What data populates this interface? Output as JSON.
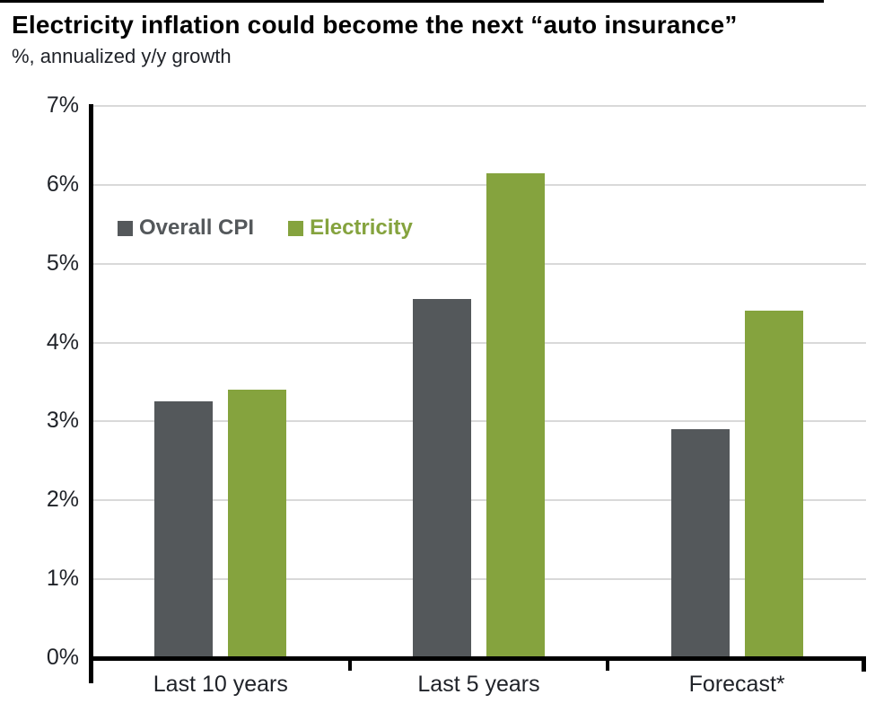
{
  "page": {
    "title": "Electricity inflation could become the next “auto insurance”",
    "subtitle": "%, annualized y/y growth"
  },
  "colors": {
    "overall_cpi": "#54585b",
    "electricity": "#85a33e",
    "gridline": "#d9d9d9",
    "axis": "#000000",
    "label_text": "#1f2228"
  },
  "chart_data": {
    "type": "bar",
    "title": "Electricity inflation could become the next “auto insurance”",
    "subtitle": "%, annualized y/y growth",
    "categories": [
      "Last 10 years",
      "Last 5 years",
      "Forecast*"
    ],
    "series": [
      {
        "name": "Overall CPI",
        "color": "#54585b",
        "values": [
          3.25,
          4.55,
          2.9
        ]
      },
      {
        "name": "Electricity",
        "color": "#85a33e",
        "values": [
          3.4,
          6.15,
          4.4
        ]
      }
    ],
    "xlabel": "",
    "ylabel": "%, annualized y/y growth",
    "ylim": [
      0,
      7
    ],
    "ytick_labels": [
      "0%",
      "1%",
      "2%",
      "3%",
      "4%",
      "5%",
      "6%",
      "7%"
    ],
    "grid": true,
    "legend_position": "inside-top-left"
  }
}
